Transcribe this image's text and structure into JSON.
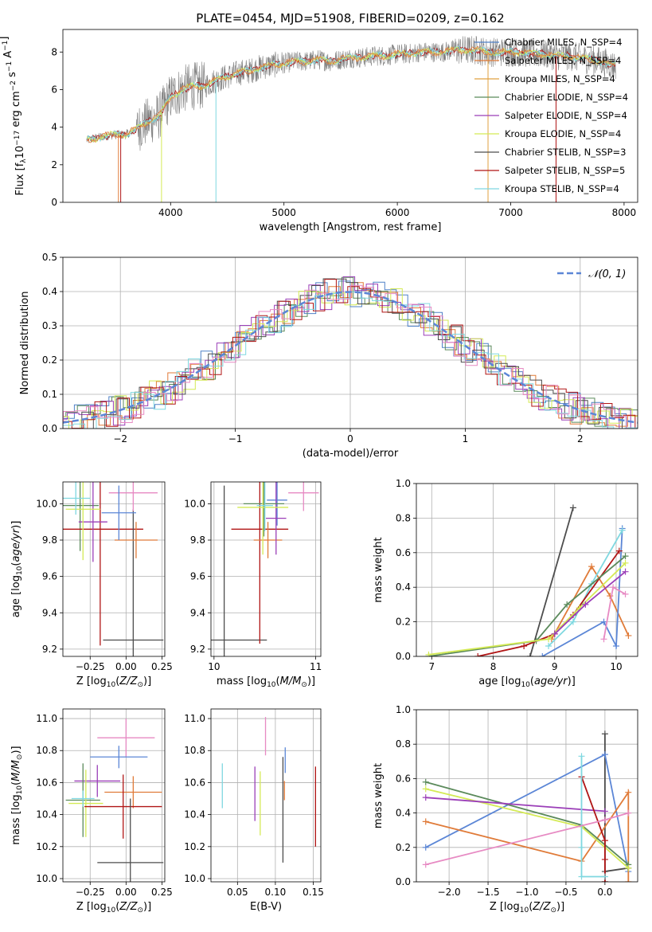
{
  "figure": {
    "title": "PLATE=0454, MJD=51908, FIBERID=0209, z=0.162"
  },
  "colors": {
    "chabrier_miles": "#4f81c7",
    "salpeter_miles": "#e07b39",
    "kroupa_miles": "#e07b39",
    "chabrier_elodie": "#5b8a5b",
    "salpeter_elodie": "#9b3fb8",
    "kroupa_elodie": "#d4ea55",
    "chabrier_stelib": "#4d4d4d",
    "salpeter_stelib": "#b01515",
    "kroupa_stelib": "#7fd8e0",
    "pink": "#e78ac3",
    "blue": "#5b86d6",
    "data_grey": "#808080",
    "gauss": "#5b86d6"
  },
  "chart_data": [
    {
      "id": "spectrum",
      "type": "line",
      "xlabel": "wavelength [Angstrom, rest frame]",
      "ylabel": "Flux [f_λ 10^-17 erg cm^-2 s^-1 A^-1]",
      "xlim": [
        3050,
        8120
      ],
      "ylim": [
        0,
        9.2
      ],
      "xticks": [
        4000,
        5000,
        6000,
        7000,
        8000
      ],
      "yticks": [
        0,
        2,
        4,
        6,
        8
      ],
      "grid": false,
      "legend_position": "top-right",
      "legend": [
        {
          "name": "Chabrier MILES, N_SSP=4",
          "color": "#4f81c7"
        },
        {
          "name": "Salpeter MILES, N_SSP=4",
          "color": "#e07b39"
        },
        {
          "name": "Kroupa MILES, N_SSP=4",
          "color": "#e0a040"
        },
        {
          "name": "Chabrier ELODIE, N_SSP=4",
          "color": "#5b8a5b"
        },
        {
          "name": "Salpeter ELODIE, N_SSP=4",
          "color": "#9b3fb8"
        },
        {
          "name": "Kroupa ELODIE, N_SSP=4",
          "color": "#d4ea55"
        },
        {
          "name": "Chabrier STELIB, N_SSP=3",
          "color": "#4d4d4d"
        },
        {
          "name": "Salpeter STELIB, N_SSP=5",
          "color": "#b01515"
        },
        {
          "name": "Kroupa STELIB, N_SSP=4",
          "color": "#7fd8e0"
        }
      ],
      "data_envelope": {
        "x": [
          3260,
          3400,
          3500,
          3600,
          3700,
          3800,
          3900,
          4000,
          4100,
          4200,
          4300,
          4400,
          4500,
          4600,
          4700,
          4800,
          4900,
          5000,
          5100,
          5200,
          5300,
          5400,
          5500,
          5600,
          5700,
          5800,
          5900,
          6000,
          6100,
          6200,
          6300,
          6400,
          6500,
          6600,
          6700,
          6800,
          6900,
          7000,
          7100,
          7200,
          7300,
          7400,
          7500,
          7600,
          7700,
          7800,
          7900
        ],
        "y": [
          3.3,
          3.5,
          3.6,
          3.6,
          3.9,
          4.3,
          4.6,
          5.6,
          6.0,
          6.2,
          6.2,
          6.5,
          6.7,
          6.9,
          7.0,
          7.2,
          7.3,
          7.4,
          7.5,
          7.5,
          7.6,
          7.5,
          7.6,
          7.7,
          7.7,
          7.8,
          7.8,
          7.9,
          7.9,
          8.0,
          8.0,
          8.0,
          8.1,
          8.1,
          8.1,
          8.0,
          8.0,
          8.0,
          8.0,
          7.9,
          7.9,
          7.8,
          7.8,
          7.7,
          7.6,
          7.5,
          7.3
        ]
      }
    },
    {
      "id": "residuals",
      "type": "line",
      "xlabel": "(data-model)/error",
      "ylabel": "Normed distribution",
      "xlim": [
        -2.5,
        2.5
      ],
      "ylim": [
        0,
        0.5
      ],
      "xticks": [
        -2,
        -1,
        0,
        1,
        2
      ],
      "yticks": [
        0.0,
        0.1,
        0.2,
        0.3,
        0.4,
        0.5
      ],
      "grid": true,
      "legend_position": "top-right",
      "legend": [
        {
          "name": "𝒩(0, 1)",
          "style": "dashed"
        }
      ],
      "gaussian": {
        "mean": 0,
        "sigma": 1
      }
    },
    {
      "id": "age_vs_Z",
      "type": "scatter",
      "xlabel": "Z [log10(Z/Z⊙)]",
      "ylabel": "age [log10(age/yr)]",
      "xlim": [
        -0.44,
        0.27
      ],
      "ylim": [
        9.16,
        10.12
      ],
      "xticks": [
        -0.25,
        0.0,
        0.25
      ],
      "yticks": [
        9.2,
        9.4,
        9.6,
        9.8,
        10.0
      ],
      "grid": true,
      "errorbars": [
        {
          "color": "#5b8a5b",
          "x": -0.32,
          "y": 9.99,
          "xerr": 0.13,
          "yerr": 0.25
        },
        {
          "color": "#b01515",
          "x": -0.18,
          "y": 9.86,
          "xerr": 0.3,
          "yerr": 0.64
        },
        {
          "color": "#4d4d4d",
          "x": 0.05,
          "y": 9.25,
          "xerr": 0.21,
          "yerr": 0.72
        },
        {
          "color": "#e07b39",
          "x": 0.07,
          "y": 9.8,
          "xerr": 0.15,
          "yerr": 0.1
        },
        {
          "color": "#e78ac3",
          "x": 0.05,
          "y": 10.06,
          "xerr": 0.17,
          "yerr": 0.1
        },
        {
          "color": "#5b86d6",
          "x": -0.05,
          "y": 9.95,
          "xerr": 0.12,
          "yerr": 0.15
        },
        {
          "color": "#9b3fb8",
          "x": -0.23,
          "y": 9.9,
          "xerr": 0.1,
          "yerr": 0.22
        },
        {
          "color": "#d4ea55",
          "x": -0.3,
          "y": 9.97,
          "xerr": 0.12,
          "yerr": 0.28
        },
        {
          "color": "#7fd8e0",
          "x": -0.35,
          "y": 10.03,
          "xerr": 0.1,
          "yerr": 0.09
        }
      ]
    },
    {
      "id": "age_vs_mass",
      "type": "scatter",
      "xlabel": "mass [log10(M/M⊙)]",
      "ylabel": "",
      "xlim": [
        9.97,
        11.05
      ],
      "ylim": [
        9.16,
        10.12
      ],
      "xticks": [
        10,
        11
      ],
      "yticks": [
        9.2,
        9.4,
        9.6,
        9.8,
        10.0
      ],
      "grid": true,
      "errorbars": [
        {
          "color": "#4d4d4d",
          "x": 10.1,
          "y": 9.25,
          "xerr": 0.42,
          "yerr": 0.85
        },
        {
          "color": "#b01515",
          "x": 10.45,
          "y": 9.86,
          "xerr": 0.28,
          "yerr": 0.63
        },
        {
          "color": "#e07b39",
          "x": 10.53,
          "y": 9.8,
          "xerr": 0.14,
          "yerr": 0.1
        },
        {
          "color": "#e78ac3",
          "x": 10.88,
          "y": 10.06,
          "xerr": 0.15,
          "yerr": 0.1
        },
        {
          "color": "#5b86d6",
          "x": 10.62,
          "y": 10.02,
          "xerr": 0.1,
          "yerr": 0.14
        },
        {
          "color": "#9b3fb8",
          "x": 10.61,
          "y": 9.92,
          "xerr": 0.1,
          "yerr": 0.2
        },
        {
          "color": "#5b8a5b",
          "x": 10.49,
          "y": 10.0,
          "xerr": 0.2,
          "yerr": 0.18
        },
        {
          "color": "#d4ea55",
          "x": 10.48,
          "y": 9.98,
          "xerr": 0.25,
          "yerr": 0.26
        },
        {
          "color": "#7fd8e0",
          "x": 10.5,
          "y": 9.99,
          "xerr": 0.08,
          "yerr": 0.14
        }
      ]
    },
    {
      "id": "mass_weight_vs_age",
      "type": "line",
      "xlabel": "age [log10(age/yr)]",
      "ylabel": "mass weight",
      "xlim": [
        6.75,
        10.35
      ],
      "ylim": [
        0,
        1.0
      ],
      "xticks": [
        7,
        8,
        9,
        10
      ],
      "yticks": [
        0.0,
        0.2,
        0.4,
        0.6,
        0.8,
        1.0
      ],
      "grid": true,
      "series": [
        {
          "color": "#4d4d4d",
          "x": [
            8.6,
            9.3
          ],
          "y": [
            0.0,
            0.86
          ]
        },
        {
          "color": "#e07b39",
          "x": [
            8.95,
            9.6,
            9.9,
            10.2
          ],
          "y": [
            0.1,
            0.52,
            0.35,
            0.12
          ]
        },
        {
          "color": "#5b86d6",
          "x": [
            8.8,
            9.8,
            10.0,
            10.1
          ],
          "y": [
            0.0,
            0.2,
            0.06,
            0.74
          ]
        },
        {
          "color": "#7fd8e0",
          "x": [
            8.9,
            9.3,
            9.6,
            10.1
          ],
          "y": [
            0.06,
            0.2,
            0.42,
            0.73
          ]
        },
        {
          "color": "#b01515",
          "x": [
            7.75,
            8.5,
            9.0,
            9.3,
            10.05
          ],
          "y": [
            0.0,
            0.06,
            0.13,
            0.24,
            0.61
          ]
        },
        {
          "color": "#5b8a5b",
          "x": [
            6.95,
            8.7,
            9.2,
            10.15
          ],
          "y": [
            0.0,
            0.09,
            0.3,
            0.58
          ]
        },
        {
          "color": "#d4ea55",
          "x": [
            6.95,
            8.9,
            9.4,
            10.15
          ],
          "y": [
            0.01,
            0.1,
            0.28,
            0.54
          ]
        },
        {
          "color": "#9b3fb8",
          "x": [
            9.0,
            9.5,
            10.15
          ],
          "y": [
            0.13,
            0.3,
            0.49
          ]
        },
        {
          "color": "#e78ac3",
          "x": [
            9.8,
            9.95,
            10.15
          ],
          "y": [
            0.1,
            0.4,
            0.36
          ]
        }
      ]
    },
    {
      "id": "mass_vs_Z",
      "type": "scatter",
      "xlabel": "Z [log10(Z/Z⊙)]",
      "ylabel": "mass [log10(M/M⊙)]",
      "xlim": [
        -0.44,
        0.27
      ],
      "ylim": [
        9.98,
        11.06
      ],
      "xticks": [
        -0.25,
        0.0,
        0.25
      ],
      "yticks": [
        10.0,
        10.2,
        10.4,
        10.6,
        10.8,
        11.0
      ],
      "grid": true,
      "errorbars": [
        {
          "color": "#e78ac3",
          "x": 0.0,
          "y": 10.88,
          "xerr": 0.2,
          "yerr": 0.12
        },
        {
          "color": "#5b86d6",
          "x": -0.05,
          "y": 10.76,
          "xerr": 0.2,
          "yerr": 0.07
        },
        {
          "color": "#9b3fb8",
          "x": -0.2,
          "y": 10.61,
          "xerr": 0.16,
          "yerr": 0.1
        },
        {
          "color": "#e07b39",
          "x": 0.05,
          "y": 10.54,
          "xerr": 0.2,
          "yerr": 0.1
        },
        {
          "color": "#5b8a5b",
          "x": -0.3,
          "y": 10.49,
          "xerr": 0.12,
          "yerr": 0.23
        },
        {
          "color": "#d4ea55",
          "x": -0.28,
          "y": 10.47,
          "xerr": 0.12,
          "yerr": 0.21
        },
        {
          "color": "#7fd8e0",
          "x": -0.3,
          "y": 10.5,
          "xerr": 0.08,
          "yerr": 0.05
        },
        {
          "color": "#b01515",
          "x": -0.02,
          "y": 10.45,
          "xerr": 0.27,
          "yerr": 0.2
        },
        {
          "color": "#4d4d4d",
          "x": 0.03,
          "y": 10.1,
          "xerr": 0.23,
          "yerr": 0.4
        }
      ]
    },
    {
      "id": "mass_vs_EBV",
      "type": "scatter",
      "xlabel": "E(B-V)",
      "ylabel": "",
      "xlim": [
        0.015,
        0.16
      ],
      "ylim": [
        9.98,
        11.06
      ],
      "xticks": [
        0.05,
        0.1,
        0.15
      ],
      "yticks": [
        10.0,
        10.2,
        10.4,
        10.6,
        10.8,
        11.0
      ],
      "grid": true,
      "errorbars": [
        {
          "color": "#7fd8e0",
          "x": 0.03,
          "y": 10.58,
          "yerr": 0.14
        },
        {
          "color": "#9b3fb8",
          "x": 0.073,
          "y": 10.53,
          "yerr": 0.17
        },
        {
          "color": "#d4ea55",
          "x": 0.08,
          "y": 10.47,
          "yerr": 0.2
        },
        {
          "color": "#e78ac3",
          "x": 0.087,
          "y": 10.89,
          "yerr": 0.12
        },
        {
          "color": "#4d4d4d",
          "x": 0.11,
          "y": 10.43,
          "yerr": 0.33
        },
        {
          "color": "#e07b39",
          "x": 0.112,
          "y": 10.55,
          "yerr": 0.06
        },
        {
          "color": "#5b86d6",
          "x": 0.113,
          "y": 10.74,
          "yerr": 0.08
        },
        {
          "color": "#b01515",
          "x": 0.153,
          "y": 10.45,
          "yerr": 0.25
        }
      ]
    },
    {
      "id": "mass_weight_vs_Z",
      "type": "line",
      "xlabel": "Z [log10(Z/Z⊙)]",
      "ylabel": "mass weight",
      "xlim": [
        -2.42,
        0.42
      ],
      "ylim": [
        0,
        1.0
      ],
      "xticks": [
        -2.0,
        -1.5,
        -1.0,
        -0.5,
        0.0
      ],
      "yticks": [
        0.0,
        0.2,
        0.4,
        0.6,
        0.8,
        1.0
      ],
      "grid": true,
      "series": [
        {
          "color": "#4d4d4d",
          "x": [
            0.0,
            0.0,
            0.0,
            0.3
          ],
          "y": [
            0.86,
            0.0,
            0.06,
            0.08
          ]
        },
        {
          "color": "#5b86d6",
          "x": [
            -2.3,
            0.0,
            0.3
          ],
          "y": [
            0.2,
            0.74,
            0.06
          ]
        },
        {
          "color": "#e07b39",
          "x": [
            -2.3,
            -0.3,
            0.3,
            0.3
          ],
          "y": [
            0.35,
            0.12,
            0.52,
            0.0
          ]
        },
        {
          "color": "#5b8a5b",
          "x": [
            -2.3,
            -0.3,
            0.3
          ],
          "y": [
            0.58,
            0.33,
            0.1
          ]
        },
        {
          "color": "#d4ea55",
          "x": [
            -2.3,
            -0.3,
            0.3
          ],
          "y": [
            0.54,
            0.32,
            0.08
          ]
        },
        {
          "color": "#9b3fb8",
          "x": [
            -2.3,
            0.0
          ],
          "y": [
            0.49,
            0.41
          ]
        },
        {
          "color": "#b01515",
          "x": [
            -0.3,
            0.0,
            0.0,
            0.0
          ],
          "y": [
            0.61,
            0.24,
            0.13,
            0.0
          ]
        },
        {
          "color": "#7fd8e0",
          "x": [
            -0.3,
            -0.3,
            -0.3,
            0.0
          ],
          "y": [
            0.73,
            0.2,
            0.03,
            0.03
          ]
        },
        {
          "color": "#e78ac3",
          "x": [
            -2.3,
            0.0,
            0.3
          ],
          "y": [
            0.1,
            0.36,
            0.4
          ]
        }
      ]
    }
  ]
}
